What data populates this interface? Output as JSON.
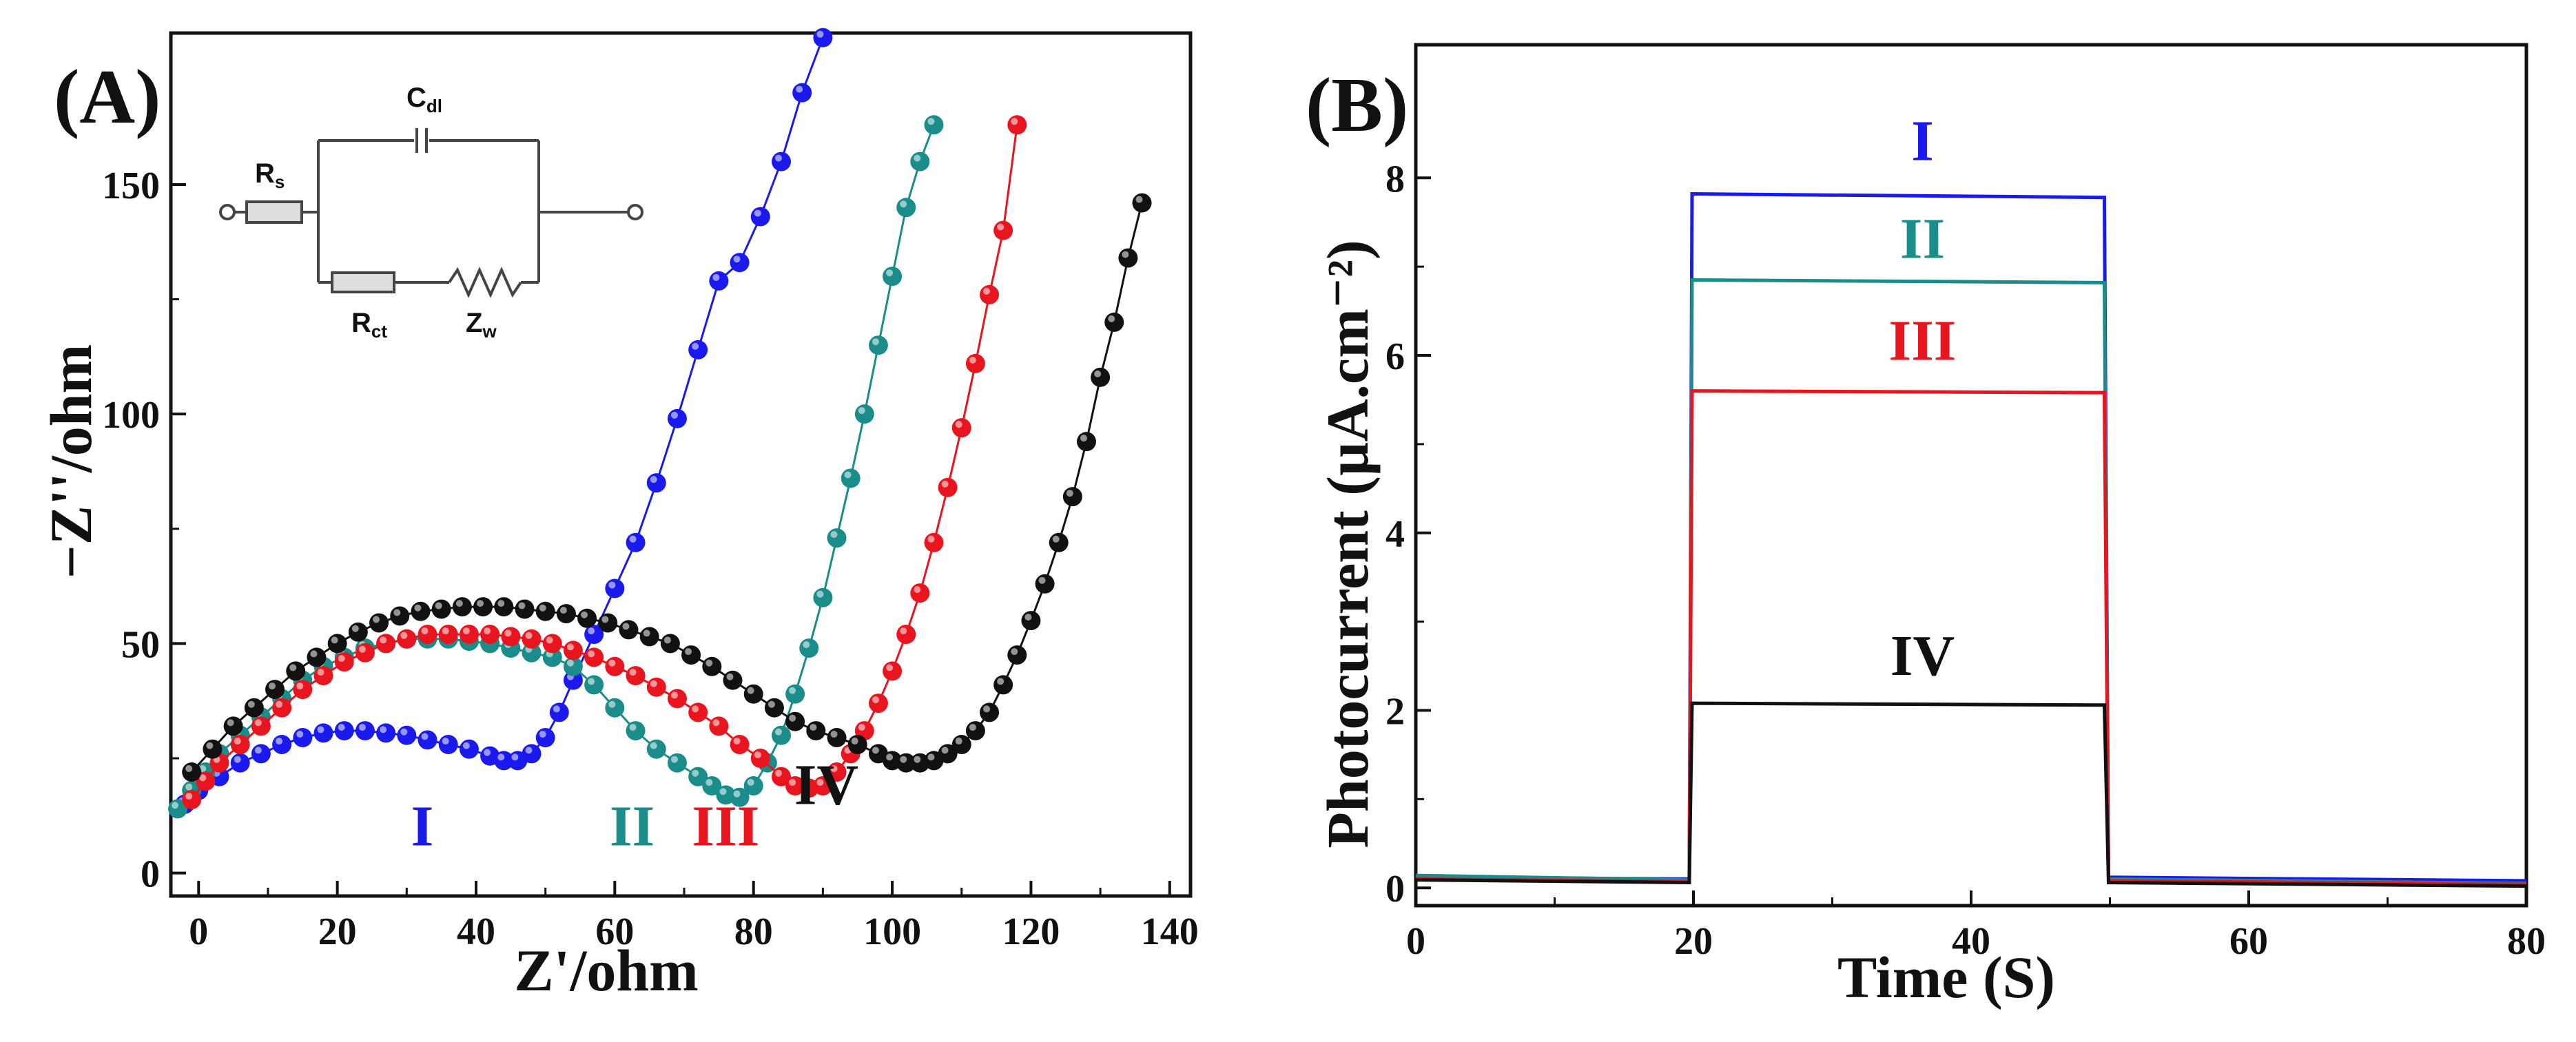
{
  "chart_data": [
    {
      "panel": "(A)",
      "type": "scatter",
      "title": "",
      "xlabel": "Z'/ohm",
      "ylabel": "−Z''/ohm",
      "xlim": [
        -4,
        143
      ],
      "ylim": [
        -5,
        183
      ],
      "xticks": [
        "0",
        "20",
        "40",
        "60",
        "80",
        "100",
        "120",
        "140"
      ],
      "yticks": [
        "0",
        "50",
        "100",
        "150"
      ],
      "xtick_values": [
        0,
        20,
        40,
        60,
        80,
        100,
        120,
        140
      ],
      "ytick_values": [
        0,
        50,
        100,
        150
      ],
      "series": [
        {
          "name": "I",
          "color": "#1a1aee",
          "x": [
            -2,
            0,
            3,
            6,
            9,
            12,
            15,
            18,
            21,
            24,
            27,
            30,
            33,
            36,
            39,
            42,
            44,
            46,
            48,
            50,
            52,
            54,
            57,
            60,
            63,
            66,
            69,
            72,
            75,
            78,
            81,
            84,
            87,
            90
          ],
          "y": [
            15,
            18,
            21,
            24,
            26,
            28,
            29.5,
            30.5,
            31,
            31,
            30.5,
            30,
            29,
            28,
            27,
            25.5,
            24.5,
            24.5,
            26,
            29.5,
            35,
            42,
            52,
            62,
            72,
            85,
            99,
            114,
            129,
            133,
            143,
            155,
            170,
            182
          ]
        },
        {
          "name": "II",
          "color": "#1a8c8a",
          "x": [
            -3,
            -1,
            1,
            3,
            6,
            9,
            12,
            15,
            18,
            21,
            24,
            27,
            30,
            33,
            36,
            39,
            42,
            45,
            48,
            51,
            54,
            57,
            60,
            63,
            66,
            69,
            72,
            74,
            76,
            78,
            80,
            82,
            84,
            86,
            88,
            90,
            92,
            94,
            96,
            98,
            100,
            102,
            104,
            106
          ],
          "y": [
            14,
            18,
            22,
            26,
            30,
            34,
            38,
            42,
            45,
            47,
            49,
            50,
            51,
            51,
            51,
            50.5,
            50,
            49,
            48,
            47,
            45,
            41,
            36,
            31,
            27,
            24,
            21,
            19,
            17,
            16.5,
            19,
            24,
            30,
            39,
            49,
            60,
            73,
            86,
            100,
            115,
            130,
            145,
            155,
            163
          ]
        },
        {
          "name": "III",
          "color": "#e8151f",
          "x": [
            -1,
            1,
            3,
            6,
            9,
            12,
            15,
            18,
            21,
            24,
            27,
            30,
            33,
            36,
            39,
            42,
            45,
            48,
            51,
            54,
            57,
            60,
            63,
            66,
            69,
            72,
            75,
            78,
            81,
            84,
            86,
            88,
            90,
            92,
            94,
            96,
            98,
            100,
            102,
            104,
            106,
            108,
            110,
            112,
            114,
            116,
            118
          ],
          "y": [
            16,
            20,
            24,
            28,
            32,
            36,
            40,
            43,
            46,
            48,
            50,
            51,
            52,
            52,
            52,
            52,
            51.5,
            51,
            50,
            48.5,
            47,
            45,
            43,
            40.5,
            38,
            35,
            32,
            28,
            25,
            21,
            19,
            18.5,
            19,
            22,
            26,
            31,
            37,
            44,
            52,
            61,
            72,
            84,
            97,
            111,
            126,
            140,
            163
          ]
        },
        {
          "name": "IV",
          "color": "#111111",
          "x": [
            -1,
            2,
            5,
            8,
            11,
            14,
            17,
            20,
            23,
            26,
            29,
            32,
            35,
            38,
            41,
            44,
            47,
            50,
            53,
            56,
            59,
            62,
            65,
            68,
            71,
            74,
            77,
            80,
            83,
            86,
            89,
            92,
            95,
            98,
            100,
            102,
            104,
            106,
            108,
            110,
            112,
            114,
            116,
            118,
            120,
            122,
            124,
            126,
            128,
            130,
            132,
            134,
            136
          ],
          "y": [
            22,
            27,
            32,
            36,
            40,
            44,
            47,
            50,
            52.5,
            54.5,
            56,
            57,
            57.5,
            58,
            58,
            58,
            57.5,
            57,
            56.5,
            55.5,
            54.5,
            53,
            51.5,
            50,
            47.5,
            45,
            42,
            39,
            36,
            33,
            31,
            29.5,
            28,
            26,
            24.5,
            24,
            24,
            24.5,
            26,
            28,
            31,
            35,
            41,
            47.5,
            55,
            63,
            72,
            82,
            94,
            108,
            120,
            134,
            146
          ]
        }
      ],
      "annotations": [
        {
          "text": "I",
          "x": 64.5,
          "y": 6,
          "color": "#1a1aee"
        },
        {
          "text": "II",
          "x": 125,
          "y": 6,
          "color": "#1a8c8a"
        },
        {
          "text": "III",
          "x": 152,
          "y": 6,
          "color": "#e8151f"
        },
        {
          "text": "IV",
          "x": 181,
          "y": 15,
          "color": "#111111"
        }
      ]
    },
    {
      "panel": "(B)",
      "type": "line",
      "title": "",
      "xlabel": "Time (S)",
      "ylabel": "Photocurrent (µA.cm⁻²)",
      "xlim": [
        0,
        80
      ],
      "ylim": [
        -0.2,
        9.5
      ],
      "xticks": [
        "0",
        "20",
        "40",
        "60",
        "80"
      ],
      "yticks": [
        "0",
        "2",
        "4",
        "6",
        "8"
      ],
      "xtick_values": [
        0,
        20,
        40,
        60,
        80
      ],
      "ytick_values": [
        0,
        2,
        4,
        6,
        8
      ],
      "series": [
        {
          "name": "I",
          "color": "#1a1aee",
          "x": [
            0,
            19.7,
            19.9,
            49.6,
            49.9,
            80
          ],
          "y": [
            0.12,
            0.1,
            7.82,
            7.78,
            0.12,
            0.08
          ]
        },
        {
          "name": "II",
          "color": "#1a8c8a",
          "x": [
            0,
            19.7,
            19.9,
            49.6,
            49.9,
            80
          ],
          "y": [
            0.14,
            0.09,
            6.85,
            6.82,
            0.1,
            0.05
          ]
        },
        {
          "name": "III",
          "color": "#e8151f",
          "x": [
            0,
            19.7,
            19.9,
            49.6,
            49.9,
            80
          ],
          "y": [
            0.1,
            0.07,
            5.6,
            5.58,
            0.08,
            0.04
          ]
        },
        {
          "name": "IV",
          "color": "#111111",
          "x": [
            0,
            19.7,
            19.9,
            49.6,
            49.9,
            80
          ],
          "y": [
            0.09,
            0.06,
            2.08,
            2.06,
            0.06,
            0.02
          ]
        }
      ],
      "annotations": [
        {
          "text": "I",
          "x": 36.5,
          "y": 8.2,
          "color": "#1a1aee"
        },
        {
          "text": "II",
          "x": 36.5,
          "y": 7.1,
          "color": "#1a8c8a"
        },
        {
          "text": "III",
          "x": 36.5,
          "y": 5.95,
          "color": "#e8151f"
        },
        {
          "text": "IV",
          "x": 36.5,
          "y": 2.4,
          "color": "#111111"
        }
      ]
    }
  ],
  "inset": {
    "labels": {
      "rs": "R",
      "rs_sub": "s",
      "cdl": "C",
      "cdl_sub": "dl",
      "rct": "R",
      "rct_sub": "ct",
      "zw": "Z",
      "zw_sub": "w"
    }
  }
}
